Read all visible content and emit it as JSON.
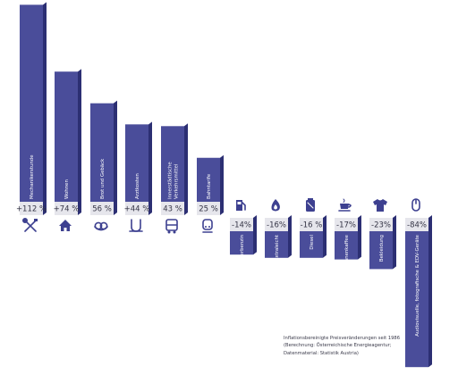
{
  "chart_data": {
    "type": "bar",
    "categories": [
      "Mechanikerstunde",
      "Wohnen",
      "Brot und Gebäck",
      "Arztkosten",
      "Innerstädtische Verkehrsmittel",
      "Bahntarife",
      "Superbenzin",
      "Heizöl extraleicht",
      "Diesel",
      "Bohnenkaffee",
      "Bekleidung",
      "Audiovisuelle, fotografische & EDV-Geräte"
    ],
    "values": [
      112,
      74,
      56,
      44,
      43,
      25,
      -14,
      -16,
      -16,
      -17,
      -23,
      -84
    ],
    "value_labels": [
      "+112 %",
      "+74 %",
      "56 %",
      "+44 %",
      "43 %",
      "25 %",
      "-14%",
      "-16%",
      "-16 %",
      "-17%",
      "-23%",
      "-84%"
    ],
    "icons": [
      "tools-icon",
      "house-icon",
      "pretzel-icon",
      "stethoscope-icon",
      "bus-icon",
      "train-icon",
      "fuel-pump-icon",
      "flame-icon",
      "fuel-canister-icon",
      "coffee-cup-icon",
      "shirt-icon",
      "computer-mouse-icon"
    ],
    "colors": {
      "bar_front": "#4a4d9a",
      "bar_side": "#2c2f73",
      "label_box": "#e6e6ec",
      "label_text": "#333344",
      "icon": "#3d4090"
    }
  },
  "note": {
    "line1": "Inflationsbereinigte Preisveränderungen seit 1986",
    "line2": "(Berechnung: Österreichische Energieagentur;",
    "line3": "Datenmaterial: Statistik Austria)"
  }
}
